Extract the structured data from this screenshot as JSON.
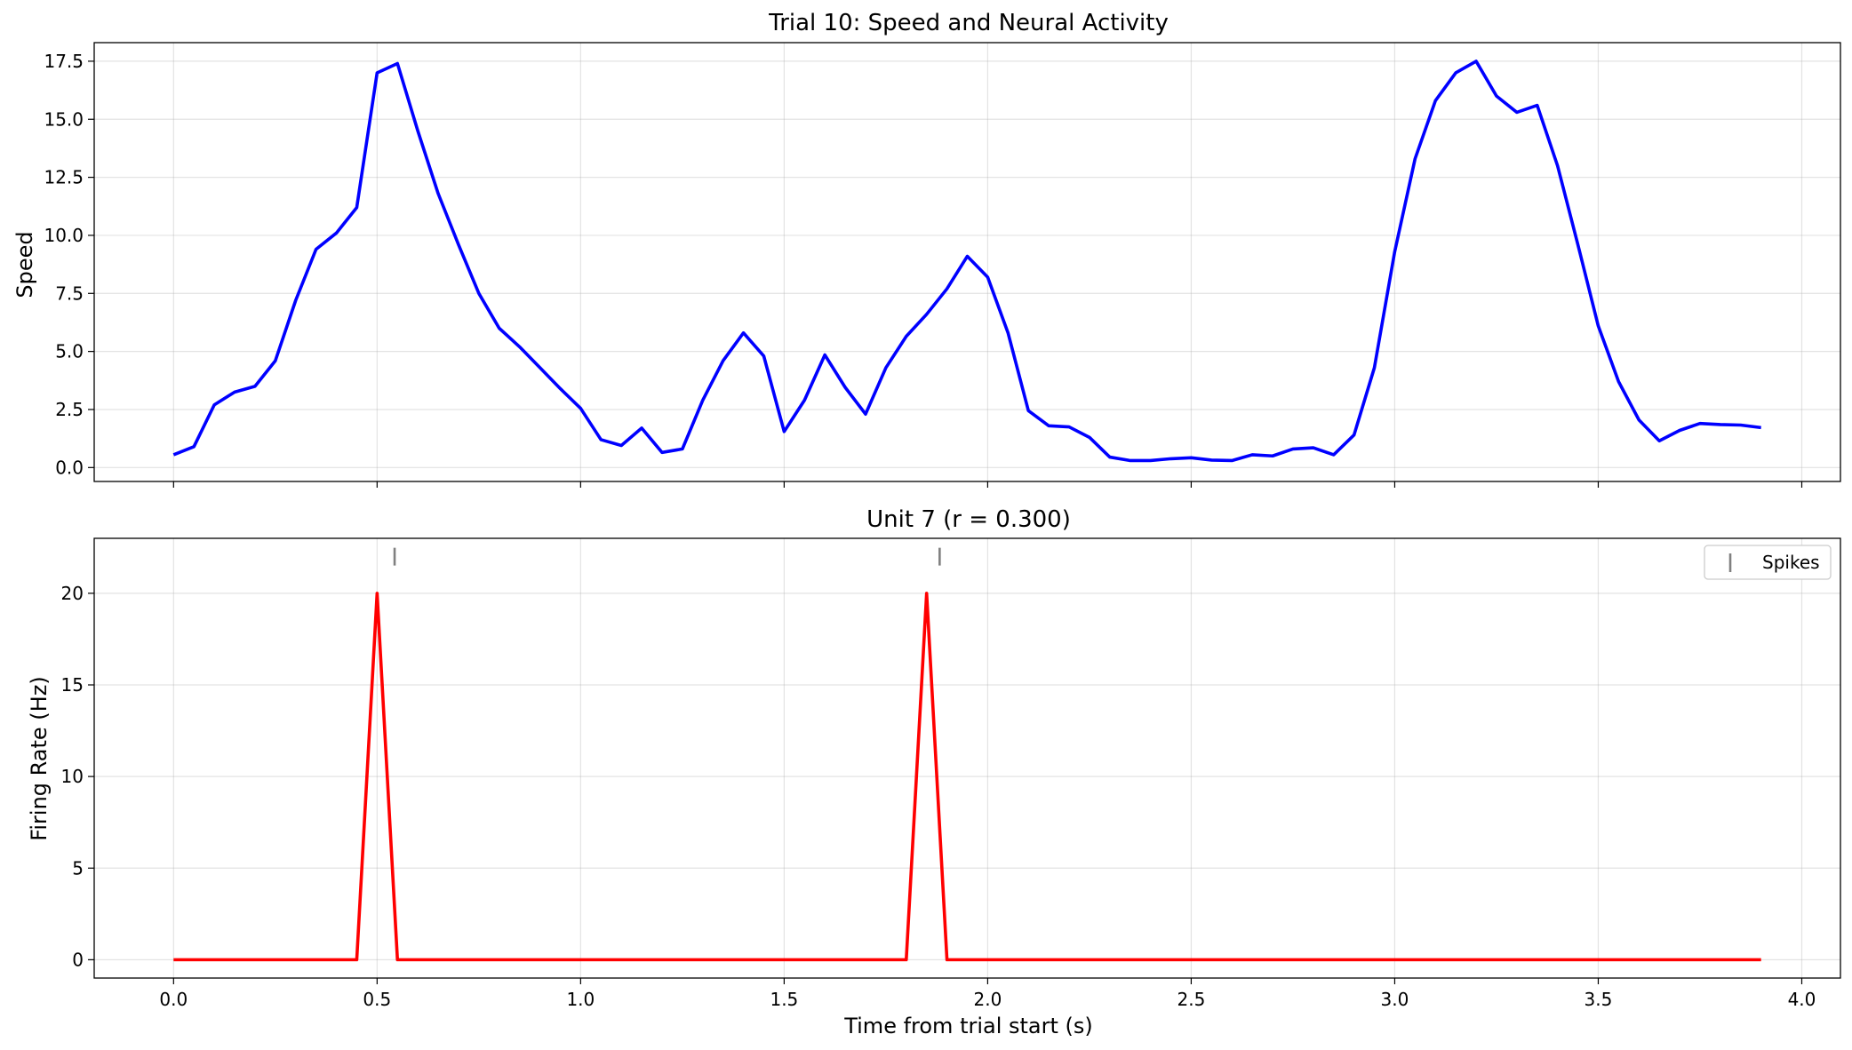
{
  "chart_data": [
    {
      "type": "line",
      "title": "Trial 10: Speed and Neural Activity",
      "xlabel": "",
      "ylabel": "Speed",
      "xlim": [
        -0.195,
        4.095
      ],
      "ylim": [
        -0.6,
        18.3
      ],
      "xticks": [
        0.0,
        0.5,
        1.0,
        1.5,
        2.0,
        2.5,
        3.0,
        3.5,
        4.0
      ],
      "xtick_labels_visible": false,
      "yticks": [
        0.0,
        2.5,
        5.0,
        7.5,
        10.0,
        12.5,
        15.0,
        17.5
      ],
      "ytick_labels": [
        "0.0",
        "2.5",
        "5.0",
        "7.5",
        "10.0",
        "12.5",
        "15.0",
        "17.5"
      ],
      "grid": true,
      "series": [
        {
          "color": "#0000ff",
          "x": [
            0.0,
            0.05,
            0.1,
            0.15,
            0.2,
            0.25,
            0.3,
            0.35,
            0.4,
            0.45,
            0.5,
            0.55,
            0.6,
            0.65,
            0.7,
            0.75,
            0.8,
            0.85,
            0.9,
            0.95,
            1.0,
            1.05,
            1.1,
            1.15,
            1.2,
            1.25,
            1.3,
            1.35,
            1.4,
            1.45,
            1.5,
            1.55,
            1.6,
            1.65,
            1.7,
            1.75,
            1.8,
            1.85,
            1.9,
            1.95,
            2.0,
            2.05,
            2.1,
            2.15,
            2.2,
            2.25,
            2.3,
            2.35,
            2.4,
            2.45,
            2.5,
            2.55,
            2.6,
            2.65,
            2.7,
            2.75,
            2.8,
            2.85,
            2.9,
            2.95,
            3.0,
            3.05,
            3.1,
            3.15,
            3.2,
            3.25,
            3.3,
            3.35,
            3.4,
            3.45,
            3.5,
            3.55,
            3.6,
            3.65,
            3.7,
            3.75,
            3.8,
            3.85,
            3.9
          ],
          "y": [
            0.55,
            0.9,
            2.7,
            3.25,
            3.5,
            4.6,
            7.2,
            9.4,
            10.1,
            11.2,
            17.0,
            17.4,
            14.5,
            11.8,
            9.6,
            7.5,
            6.0,
            5.2,
            4.3,
            3.4,
            2.55,
            1.2,
            0.95,
            1.7,
            0.65,
            0.8,
            2.9,
            4.6,
            5.8,
            4.8,
            1.55,
            2.9,
            4.85,
            3.45,
            2.3,
            4.3,
            5.65,
            6.6,
            7.7,
            9.1,
            8.2,
            5.8,
            2.45,
            1.8,
            1.75,
            1.3,
            0.45,
            0.3,
            0.3,
            0.38,
            0.42,
            0.32,
            0.3,
            0.55,
            0.5,
            0.8,
            0.85,
            0.55,
            1.4,
            4.3,
            9.3,
            13.3,
            15.8,
            17.0,
            17.5,
            16.0,
            15.3,
            15.6,
            13.0,
            9.6,
            6.1,
            3.7,
            2.05,
            1.15,
            1.6,
            1.9,
            1.85,
            1.83,
            1.72
          ]
        }
      ]
    },
    {
      "type": "line",
      "title": "Unit 7 (r = 0.300)",
      "xlabel": "Time from trial start (s)",
      "ylabel": "Firing Rate (Hz)",
      "xlim": [
        -0.195,
        4.095
      ],
      "ylim": [
        -1.0,
        23.0
      ],
      "xticks": [
        0.0,
        0.5,
        1.0,
        1.5,
        2.0,
        2.5,
        3.0,
        3.5,
        4.0
      ],
      "xtick_labels": [
        "0.0",
        "0.5",
        "1.0",
        "1.5",
        "2.0",
        "2.5",
        "3.0",
        "3.5",
        "4.0"
      ],
      "yticks": [
        0,
        5,
        10,
        15,
        20
      ],
      "ytick_labels": [
        "0",
        "5",
        "10",
        "15",
        "20"
      ],
      "grid": true,
      "legend": {
        "position": "upper right",
        "entries": [
          "Spikes"
        ]
      },
      "series": [
        {
          "color": "#ff0000",
          "x": [
            0.0,
            0.45,
            0.5,
            0.55,
            1.8,
            1.85,
            1.9,
            3.9
          ],
          "y": [
            0,
            0,
            20,
            0,
            0,
            20,
            0,
            0
          ]
        }
      ],
      "spikes": {
        "name": "Spikes",
        "color": "#808080",
        "marker": "|",
        "times": [
          0.543,
          1.882
        ],
        "y": 22
      }
    }
  ]
}
